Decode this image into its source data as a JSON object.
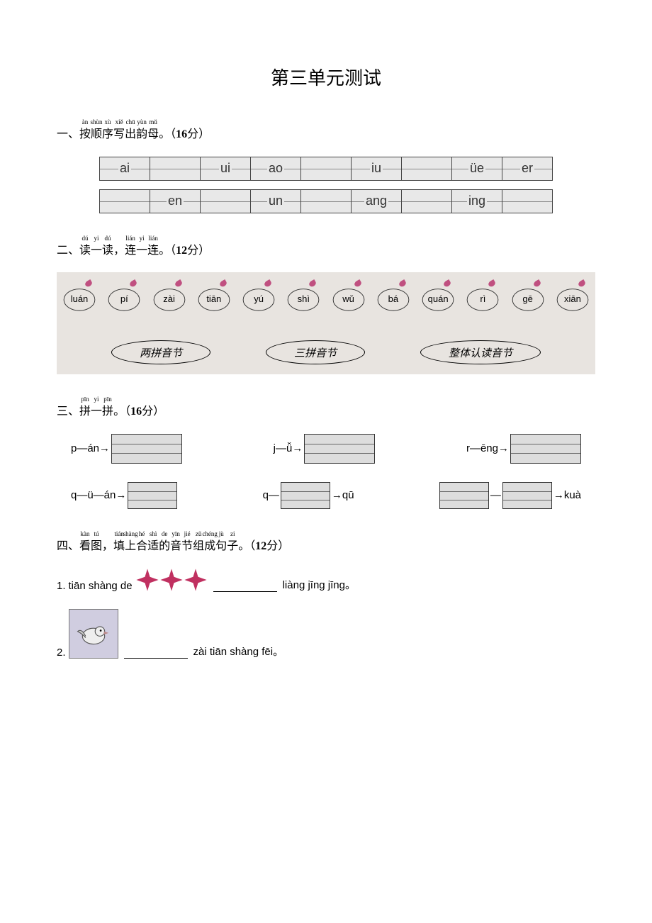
{
  "title": "第三单元测试",
  "q1": {
    "num": "一、",
    "ruby": [
      {
        "base": "按",
        "annot": "àn"
      },
      {
        "base": "顺",
        "annot": "shùn"
      },
      {
        "base": "序",
        "annot": "xù"
      },
      {
        "base": "写",
        "annot": "xiě"
      },
      {
        "base": "出",
        "annot": "chū"
      },
      {
        "base": "韵",
        "annot": "yùn"
      },
      {
        "base": "母",
        "annot": "mǔ"
      }
    ],
    "tail": "。（",
    "points": "16",
    "pts_label": "分）",
    "row1": [
      "ai",
      "",
      "ui",
      "ao",
      "",
      "iu",
      "",
      "üe",
      "er"
    ],
    "row2": [
      "",
      "en",
      "",
      "un",
      "",
      "ang",
      "",
      "ing",
      ""
    ]
  },
  "q2": {
    "num": "二、",
    "ruby": [
      {
        "base": "读",
        "annot": "dú"
      },
      {
        "base": "一",
        "annot": "yi"
      },
      {
        "base": "读",
        "annot": "dú"
      },
      {
        "base": "，",
        "annot": ""
      },
      {
        "base": "连",
        "annot": "lián"
      },
      {
        "base": "一",
        "annot": "yi"
      },
      {
        "base": "连",
        "annot": "lián"
      }
    ],
    "tail": "。（",
    "points": "12",
    "pts_label": "分）",
    "syllables": [
      "luán",
      "pí",
      "zài",
      "tiān",
      "yú",
      "shì",
      "wǔ",
      "bá",
      "quán",
      "rì",
      "gē",
      "xiān"
    ],
    "categories": [
      "两拼音节",
      "三拼音节",
      "整体认读音节"
    ]
  },
  "q3": {
    "num": "三、",
    "ruby": [
      {
        "base": "拼",
        "annot": "pīn"
      },
      {
        "base": "一",
        "annot": "yi"
      },
      {
        "base": "拼",
        "annot": "pīn"
      }
    ],
    "tail": "。（",
    "points": "16",
    "pts_label": "分）",
    "items": {
      "r1a_l": "p—án→",
      "r1b_l": "j—ǚ→",
      "r1c_l": "r—ēng→",
      "r2a_l": "q—ü—án→",
      "r2b_l": "q—",
      "r2b_r": "→qū",
      "r2c_mid": "—",
      "r2c_r": "→kuà"
    }
  },
  "q4": {
    "num": "四、",
    "ruby": [
      {
        "base": "看",
        "annot": "kàn"
      },
      {
        "base": "图",
        "annot": "tú"
      },
      {
        "base": "，",
        "annot": ""
      },
      {
        "base": "填",
        "annot": "tián"
      },
      {
        "base": "上",
        "annot": "shàng"
      },
      {
        "base": "合",
        "annot": "hé"
      },
      {
        "base": "适",
        "annot": "shì"
      },
      {
        "base": "的",
        "annot": "de"
      },
      {
        "base": "音",
        "annot": "yīn"
      },
      {
        "base": "节",
        "annot": "jié"
      },
      {
        "base": "组",
        "annot": "zǔ"
      },
      {
        "base": "成",
        "annot": "chéng"
      },
      {
        "base": "句",
        "annot": "jù"
      },
      {
        "base": "子",
        "annot": "zi"
      }
    ],
    "tail": "。（",
    "points": "12",
    "pts_label": "分）",
    "item1": {
      "num": "1.",
      "pre": "tiān shàng de",
      "post": "liàng jīng jīng。"
    },
    "item2": {
      "num": "2.",
      "post": "zài tiān shàng fēi。"
    }
  }
}
